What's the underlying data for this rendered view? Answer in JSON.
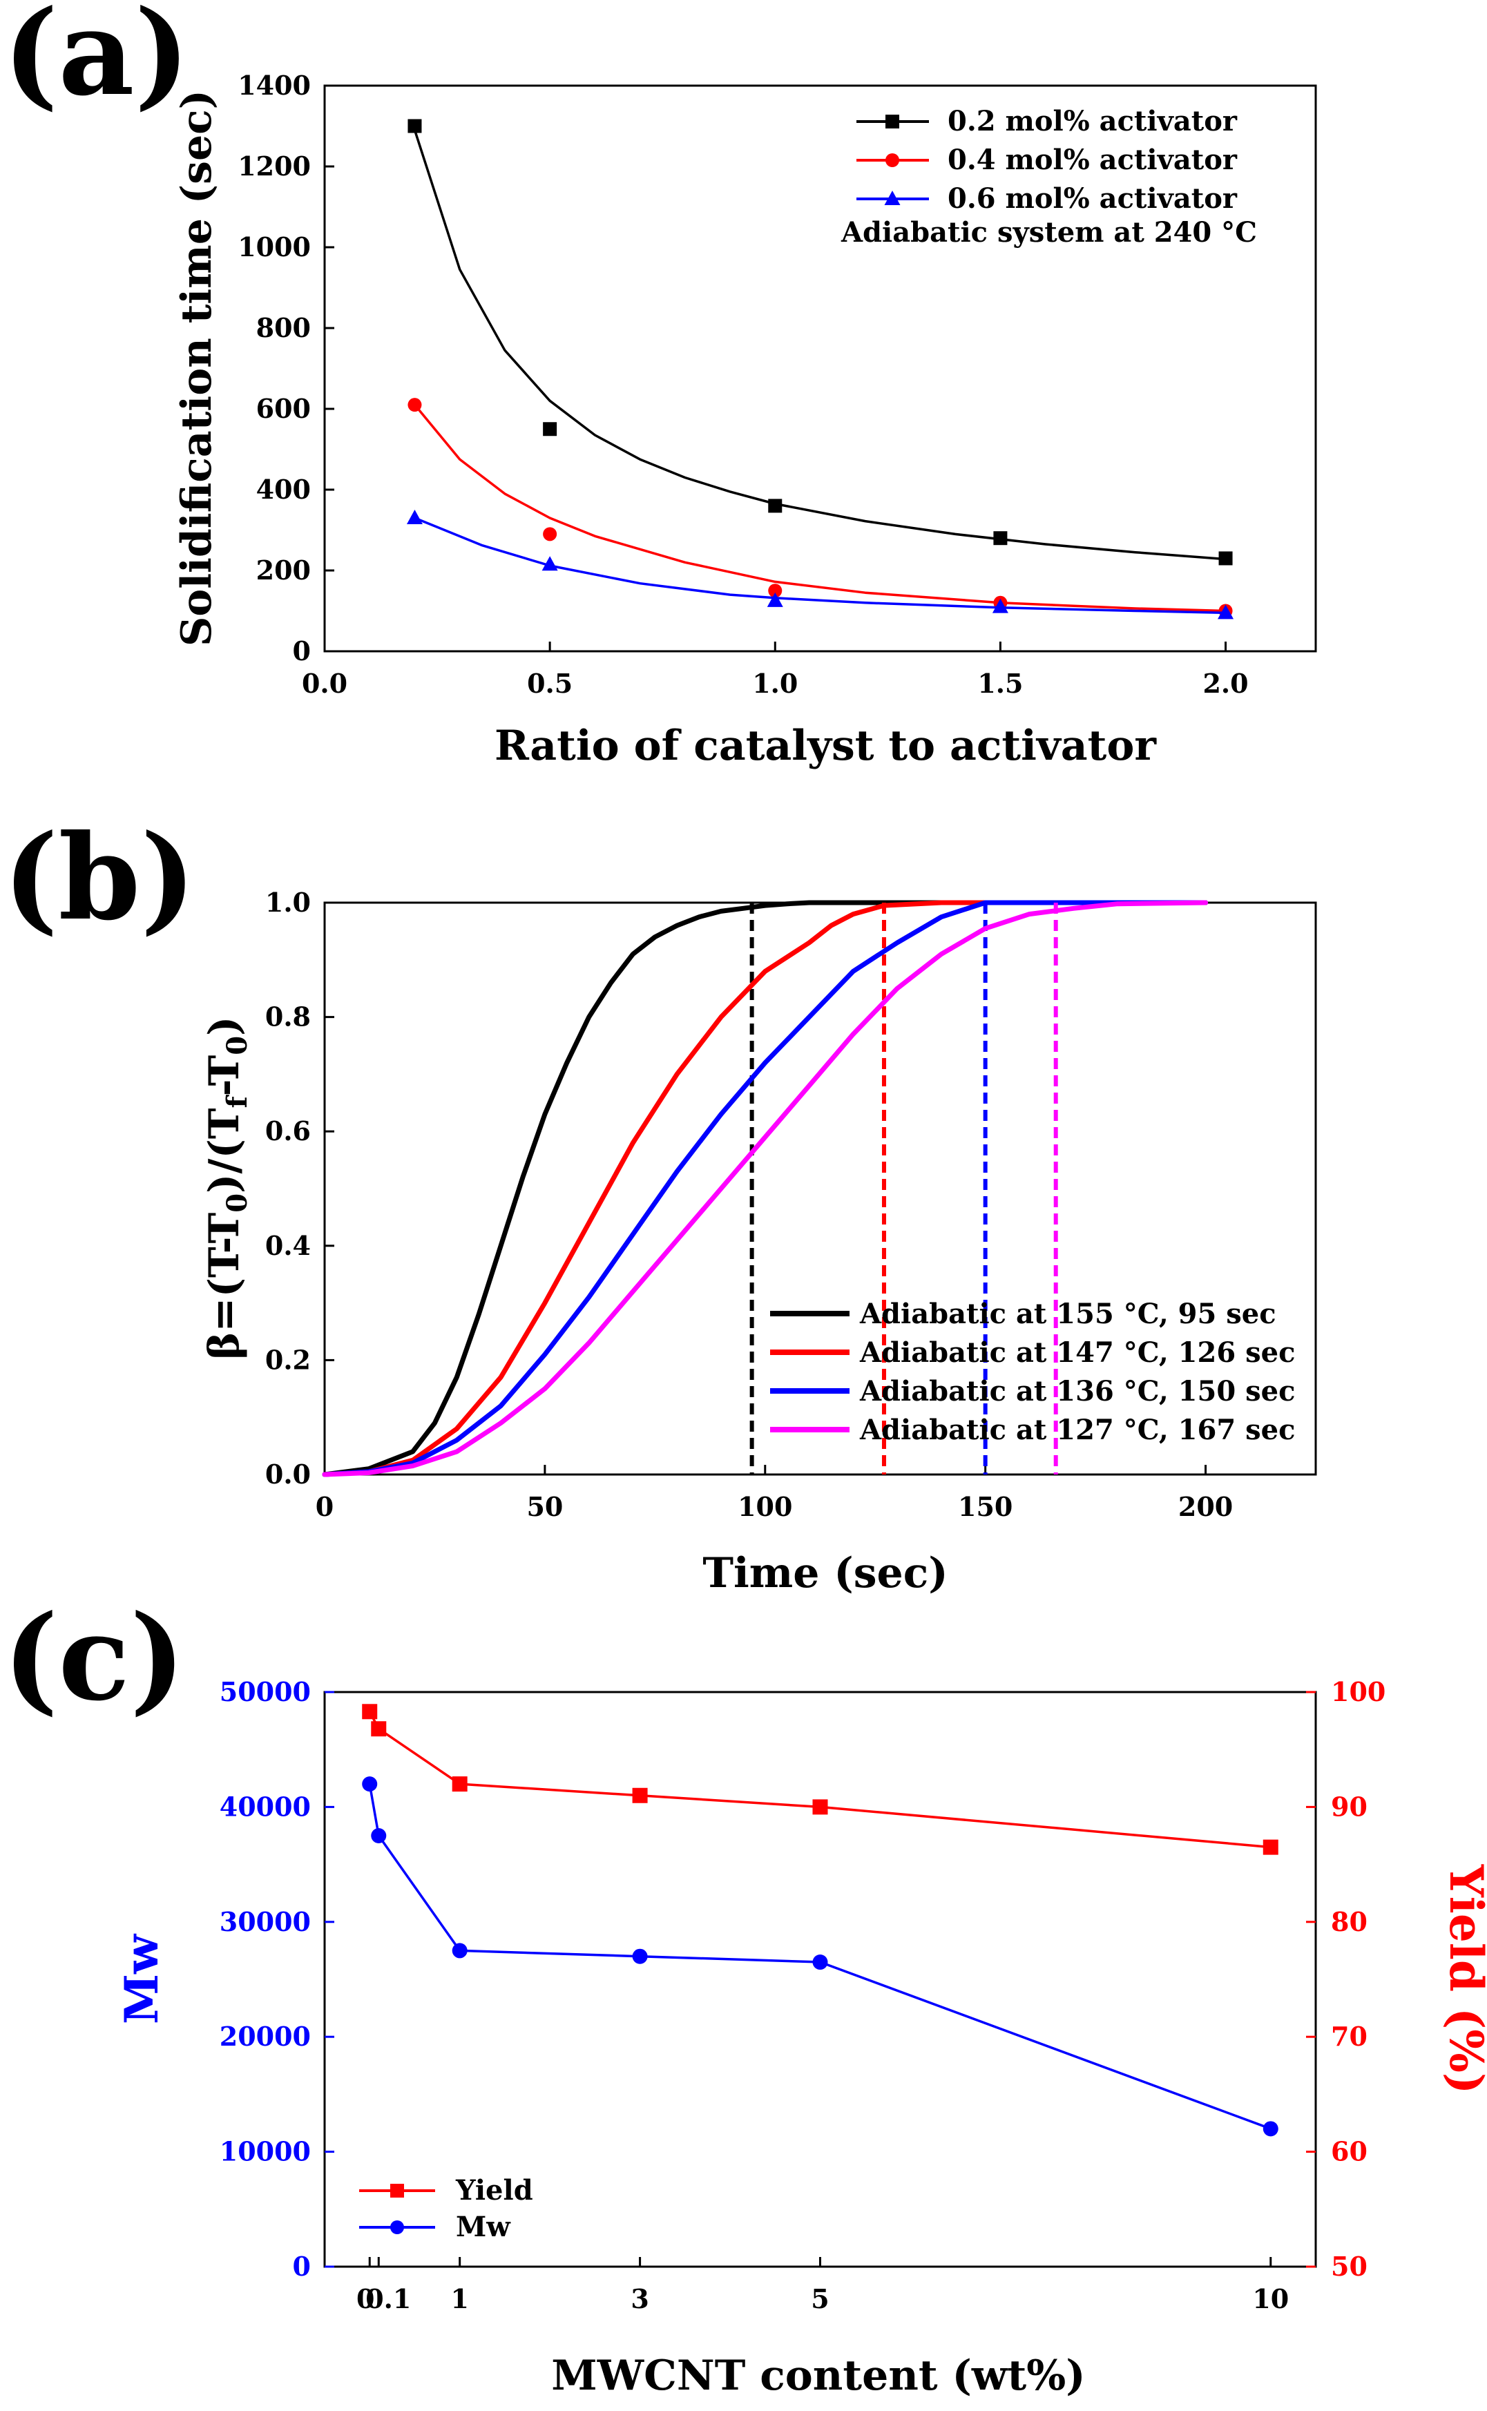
{
  "panel_labels": [
    "(a)",
    "(b)",
    "(c)"
  ],
  "chart_data": [
    {
      "type": "scatter",
      "title": "",
      "xlabel": "Ratio of catalyst to activator",
      "ylabel": "Solidification time (sec)",
      "xlim": [
        0.0,
        2.2
      ],
      "ylim": [
        0,
        1400
      ],
      "xticks": [
        "0.0",
        "0.5",
        "1.0",
        "1.5",
        "2.0"
      ],
      "yticks": [
        "0",
        "200",
        "400",
        "600",
        "800",
        "1000",
        "1200",
        "1400"
      ],
      "annotation": "Adiabatic system at 240 °C",
      "legend_position": "top-right",
      "series": [
        {
          "name": "0.2 mol% activator",
          "color": "#000000",
          "marker": "square",
          "x": [
            0.2,
            0.5,
            1.0,
            1.5,
            2.0
          ],
          "y": [
            1300,
            550,
            360,
            280,
            230
          ],
          "fit_x": [
            0.2,
            0.3,
            0.4,
            0.5,
            0.6,
            0.7,
            0.8,
            0.9,
            1.0,
            1.2,
            1.4,
            1.6,
            1.8,
            2.0
          ],
          "fit_y": [
            1290,
            945,
            745,
            620,
            535,
            475,
            430,
            395,
            365,
            322,
            290,
            265,
            245,
            228
          ]
        },
        {
          "name": "0.4 mol% activator",
          "color": "#ff0000",
          "marker": "circle",
          "x": [
            0.2,
            0.5,
            1.0,
            1.5,
            2.0
          ],
          "y": [
            610,
            290,
            150,
            120,
            100
          ],
          "fit_x": [
            0.2,
            0.3,
            0.4,
            0.5,
            0.6,
            0.8,
            1.0,
            1.2,
            1.5,
            1.8,
            2.0
          ],
          "fit_y": [
            610,
            475,
            390,
            330,
            285,
            220,
            172,
            145,
            120,
            106,
            100
          ]
        },
        {
          "name": "0.6 mol% activator",
          "color": "#0000ff",
          "marker": "triangle",
          "x": [
            0.2,
            0.5,
            1.0,
            1.5,
            2.0
          ],
          "y": [
            330,
            215,
            125,
            110,
            95
          ],
          "fit_x": [
            0.2,
            0.35,
            0.5,
            0.7,
            0.9,
            1.0,
            1.2,
            1.5,
            1.8,
            2.0
          ],
          "fit_y": [
            330,
            262,
            212,
            168,
            140,
            132,
            120,
            108,
            100,
            95
          ]
        }
      ]
    },
    {
      "type": "line",
      "title": "",
      "xlabel": "Time (sec)",
      "ylabel": "β=(T-T0)/(Tf-T0)",
      "ylabel_parts": {
        "lead": "β=(T-T",
        "sub1": "0",
        "mid": ")/(T",
        "sub2": "f",
        "mid2": "-T",
        "sub3": "0",
        "tail": ")"
      },
      "xlim": [
        0,
        225
      ],
      "ylim": [
        0.0,
        1.0
      ],
      "xticks": [
        "0",
        "50",
        "100",
        "150",
        "200"
      ],
      "yticks": [
        "0.0",
        "0.2",
        "0.4",
        "0.6",
        "0.8",
        "1.0"
      ],
      "legend_position": "bottom-right",
      "series": [
        {
          "name": "Adiabatic at 155 °C, 95 sec",
          "color": "#000000",
          "vline_x": 97,
          "x": [
            0,
            10,
            20,
            25,
            30,
            35,
            40,
            45,
            50,
            55,
            60,
            65,
            70,
            75,
            80,
            85,
            90,
            95,
            100,
            105,
            110,
            200
          ],
          "y": [
            0.0,
            0.01,
            0.04,
            0.09,
            0.17,
            0.28,
            0.4,
            0.52,
            0.63,
            0.72,
            0.8,
            0.86,
            0.91,
            0.94,
            0.96,
            0.975,
            0.985,
            0.99,
            0.995,
            0.998,
            1.0,
            1.0
          ]
        },
        {
          "name": "Adiabatic at 147 °C, 126 sec",
          "color": "#ff0000",
          "vline_x": 127,
          "x": [
            0,
            10,
            20,
            30,
            40,
            50,
            60,
            65,
            70,
            80,
            90,
            100,
            110,
            115,
            120,
            127,
            140,
            200
          ],
          "y": [
            0.0,
            0.005,
            0.025,
            0.08,
            0.17,
            0.3,
            0.44,
            0.51,
            0.58,
            0.7,
            0.8,
            0.88,
            0.93,
            0.96,
            0.98,
            0.995,
            1.0,
            1.0
          ]
        },
        {
          "name": "Adiabatic at 136 °C, 150 sec",
          "color": "#0000ff",
          "vline_x": 150,
          "x": [
            0,
            10,
            20,
            30,
            40,
            50,
            60,
            70,
            80,
            90,
            100,
            110,
            120,
            130,
            140,
            150,
            200
          ],
          "y": [
            0.0,
            0.005,
            0.02,
            0.06,
            0.12,
            0.21,
            0.31,
            0.42,
            0.53,
            0.63,
            0.72,
            0.8,
            0.88,
            0.93,
            0.975,
            1.0,
            1.0
          ]
        },
        {
          "name": "Adiabatic at 127 °C, 167 sec",
          "color": "#ff00ff",
          "vline_x": 166,
          "x": [
            0,
            10,
            20,
            30,
            40,
            50,
            60,
            70,
            80,
            90,
            100,
            110,
            120,
            130,
            140,
            150,
            160,
            170,
            180,
            200
          ],
          "y": [
            0.0,
            0.003,
            0.015,
            0.04,
            0.09,
            0.15,
            0.23,
            0.32,
            0.41,
            0.5,
            0.59,
            0.68,
            0.77,
            0.85,
            0.91,
            0.955,
            0.98,
            0.99,
            0.998,
            1.0
          ]
        }
      ]
    },
    {
      "type": "line",
      "title": "",
      "xlabel": "MWCNT content (wt%)",
      "ylabel": "Mw",
      "y2label": "Yield (%)",
      "xlim": [
        -0.5,
        10.5
      ],
      "ylim": [
        0,
        50000
      ],
      "y2lim": [
        50,
        100
      ],
      "xticks": [
        {
          "label": "0.1",
          "value": 0.1
        },
        {
          "label": "1",
          "value": 1
        },
        {
          "label": "3",
          "value": 3
        },
        {
          "label": "5",
          "value": 5
        },
        {
          "label": "10",
          "value": 10
        }
      ],
      "x_zero_tick": "0",
      "yticks": [
        "0",
        "10000",
        "20000",
        "30000",
        "40000",
        "50000"
      ],
      "y2ticks": [
        "50",
        "60",
        "70",
        "80",
        "90",
        "100"
      ],
      "legend_position": "bottom-left",
      "series": [
        {
          "name": "Yield",
          "color": "#ff0000",
          "marker": "square",
          "axis": "right",
          "x": [
            0.0,
            0.1,
            1,
            3,
            5,
            10
          ],
          "y": [
            98.3,
            96.8,
            92.0,
            91.0,
            90.0,
            86.5
          ]
        },
        {
          "name": "Mw",
          "color": "#0000ff",
          "marker": "circle",
          "axis": "left",
          "x": [
            0.0,
            0.1,
            1,
            3,
            5,
            10
          ],
          "y": [
            42000,
            37500,
            27500,
            27000,
            26500,
            12000
          ]
        }
      ]
    }
  ]
}
